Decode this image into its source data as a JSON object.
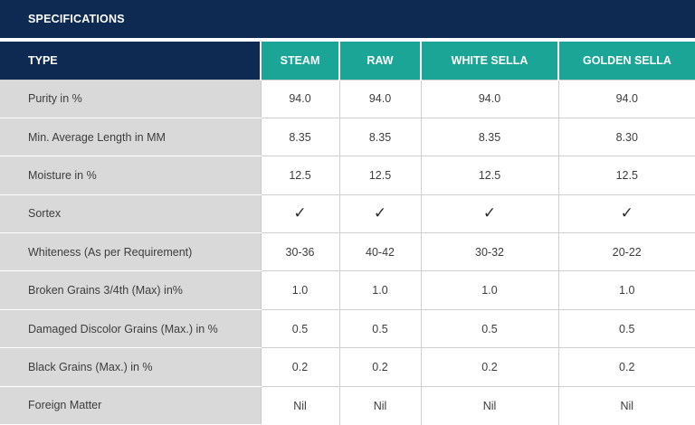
{
  "title": "SPECIFICATIONS",
  "table": {
    "header": {
      "type_label": "TYPE",
      "columns": [
        "STEAM",
        "RAW",
        "WHITE SELLA",
        "GOLDEN SELLA"
      ]
    },
    "rows": [
      {
        "label": "Purity in %",
        "values": [
          "94.0",
          "94.0",
          "94.0",
          "94.0"
        ]
      },
      {
        "label": "Min. Average Length in MM",
        "values": [
          "8.35",
          "8.35",
          "8.35",
          "8.30"
        ]
      },
      {
        "label": "Moisture in %",
        "values": [
          "12.5",
          "12.5",
          "12.5",
          "12.5"
        ]
      },
      {
        "label": "Sortex",
        "values": [
          "✓",
          "✓",
          "✓",
          "✓"
        ]
      },
      {
        "label": "Whiteness (As per Requirement)",
        "values": [
          "30-36",
          "40-42",
          "30-32",
          "20-22"
        ]
      },
      {
        "label": "Broken Grains 3/4th (Max) in%",
        "values": [
          "1.0",
          "1.0",
          "1.0",
          "1.0"
        ]
      },
      {
        "label": "Damaged Discolor Grains (Max.) in %",
        "values": [
          "0.5",
          "0.5",
          "0.5",
          "0.5"
        ]
      },
      {
        "label": "Black Grains (Max.) in %",
        "values": [
          "0.2",
          "0.2",
          "0.2",
          "0.2"
        ]
      },
      {
        "label": "Foreign Matter",
        "values": [
          "Nil",
          "Nil",
          "Nil",
          "Nil"
        ]
      }
    ]
  },
  "colors": {
    "navy": "#0e2a52",
    "teal": "#1aa596",
    "label_bg": "#d9d9d9"
  }
}
